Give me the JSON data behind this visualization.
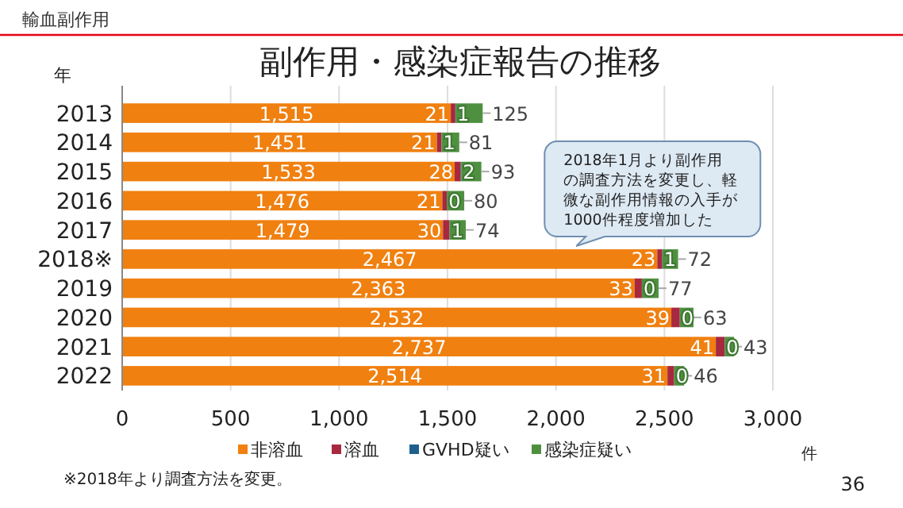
{
  "chart_data": {
    "type": "bar",
    "orientation": "horizontal",
    "stacked": true,
    "title": "副作用・感染症報告の推移",
    "ylabel": "年",
    "xlabel": "件",
    "categories": [
      "2013",
      "2014",
      "2015",
      "2016",
      "2017",
      "2018※",
      "2019",
      "2020",
      "2021",
      "2022"
    ],
    "series": [
      {
        "name": "非溶血",
        "color": "#f08010",
        "values": [
          1515,
          1451,
          1533,
          1476,
          1479,
          2467,
          2363,
          2532,
          2737,
          2514
        ],
        "value_labels": [
          "1,515",
          "1,451",
          "1,533",
          "1,476",
          "1,479",
          "2,467",
          "2,363",
          "2,532",
          "2,737",
          "2,514"
        ]
      },
      {
        "name": "溶血",
        "color": "#a82840",
        "values": [
          21,
          21,
          28,
          21,
          30,
          23,
          33,
          39,
          41,
          31
        ],
        "value_labels": [
          "21",
          "21",
          "28",
          "21",
          "30",
          "23",
          "33",
          "39",
          "41",
          "31"
        ]
      },
      {
        "name": "GVHD疑い",
        "color": "#1f5f8f",
        "values": [
          1,
          1,
          2,
          0,
          1,
          1,
          0,
          0,
          0,
          0
        ],
        "value_labels": [
          "1",
          "1",
          "2",
          "0",
          "1",
          "1",
          "0",
          "0",
          "0",
          "0"
        ]
      },
      {
        "name": "感染症疑い",
        "color": "#4f9040",
        "values": [
          125,
          81,
          93,
          80,
          74,
          72,
          77,
          63,
          43,
          46
        ],
        "value_labels": [
          "125",
          "81",
          "93",
          "80",
          "74",
          "72",
          "77",
          "63",
          "43",
          "46"
        ]
      }
    ],
    "xlim": [
      0,
      3000
    ],
    "xticks": [
      {
        "value": 0,
        "label": "0"
      },
      {
        "value": 500,
        "label": "500"
      },
      {
        "value": 1000,
        "label": "1,000"
      },
      {
        "value": 1500,
        "label": "1,500"
      },
      {
        "value": 2000,
        "label": "2,000"
      },
      {
        "value": 2500,
        "label": "2,500"
      },
      {
        "value": 3000,
        "label": "3,000"
      }
    ],
    "grid": "x",
    "legend": "bottom",
    "annotations": [
      "輸血副作用",
      {
        "text": "2018年1月より副作用の調査方法を変更し、軽微な副作用情報の入手が1000件程度増加した",
        "x": 2467,
        "y": "2018※"
      },
      "※2018年より調査方法を変更。",
      "36"
    ]
  }
}
